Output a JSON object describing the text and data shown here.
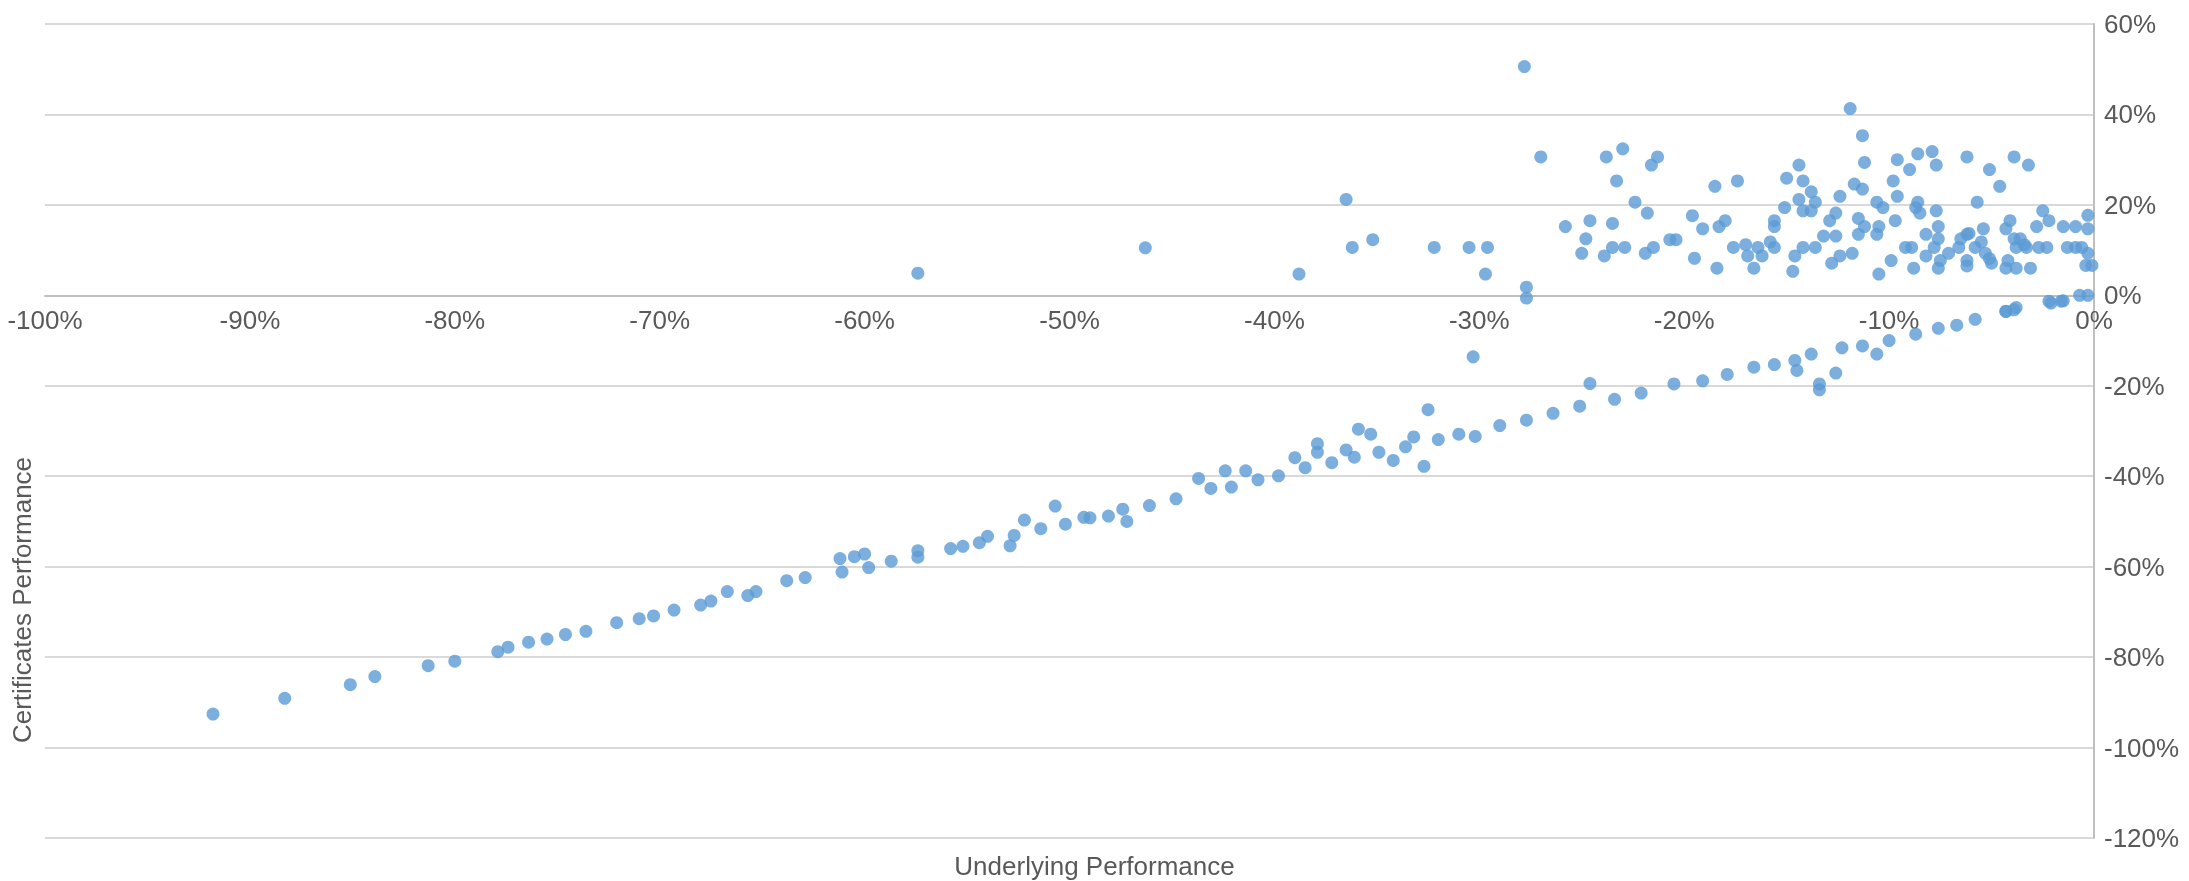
{
  "chart_data": {
    "type": "scatter",
    "xlabel": "Underlying Performance",
    "ylabel": "Certificates Performance",
    "xlim": [
      -100,
      0
    ],
    "ylim": [
      -120,
      60
    ],
    "xticks": [
      {
        "value": -100,
        "label": "-100%"
      },
      {
        "value": -90,
        "label": "-90%"
      },
      {
        "value": -80,
        "label": "-80%"
      },
      {
        "value": -70,
        "label": "-70%"
      },
      {
        "value": -60,
        "label": "-60%"
      },
      {
        "value": -50,
        "label": "-50%"
      },
      {
        "value": -40,
        "label": "-40%"
      },
      {
        "value": -30,
        "label": "-30%"
      },
      {
        "value": -20,
        "label": "-20%"
      },
      {
        "value": -10,
        "label": "-10%"
      },
      {
        "value": 0,
        "label": "0%"
      }
    ],
    "yticks": [
      {
        "value": -120,
        "label": "-120%"
      },
      {
        "value": -100,
        "label": "-100%"
      },
      {
        "value": -80,
        "label": "-80%"
      },
      {
        "value": -60,
        "label": "-60%"
      },
      {
        "value": -40,
        "label": "-40%"
      },
      {
        "value": -20,
        "label": "-20%"
      },
      {
        "value": 0,
        "label": "0%"
      },
      {
        "value": 20,
        "label": "20%"
      },
      {
        "value": 40,
        "label": "40%"
      },
      {
        "value": 60,
        "label": "60%"
      }
    ],
    "grid": "y",
    "marker": "circle",
    "series": [
      {
        "color": "#5b9bd5",
        "x": [
          -91.8,
          -88.3,
          -85.1,
          -83.9,
          -81.3,
          -80.0,
          -77.9,
          -77.4,
          -76.4,
          -75.5,
          -74.6,
          -73.6,
          -72.1,
          -71.0,
          -70.3,
          -69.3,
          -68.0,
          -67.5,
          -66.7,
          -65.7,
          -65.3,
          -63.8,
          -62.9,
          -61.2,
          -61.1,
          -60.5,
          -60.0,
          -59.8,
          -58.7,
          -57.4,
          -57.4,
          -55.8,
          -55.2,
          -54.4,
          -54.0,
          -52.9,
          -52.7,
          -52.2,
          -51.4,
          -50.7,
          -50.2,
          -49.0,
          -48.1,
          -49.3,
          -47.4,
          -47.2,
          -46.1,
          -44.8,
          -43.7,
          -43.1,
          -42.4,
          -42.1,
          -41.4,
          -40.8,
          -39.8,
          -39.0,
          -38.5,
          -37.9,
          -37.9,
          -37.2,
          -36.5,
          -36.1,
          -35.9,
          -35.3,
          -34.9,
          -34.2,
          -33.6,
          -33.2,
          -32.7,
          -32.5,
          -32.0,
          -31.0,
          -30.3,
          -30.2,
          -29.0,
          -27.7,
          -26.4,
          -25.1,
          -24.6,
          -23.4,
          -22.1,
          -20.5,
          -19.1,
          -17.9,
          -16.6,
          -15.6,
          -14.6,
          -14.5,
          -13.8,
          -13.4,
          -13.4,
          -12.6,
          -12.3,
          -11.3,
          -10.6,
          -10.0,
          -8.7,
          -7.6,
          -6.7,
          -5.8,
          -4.3,
          -3.8,
          -2.1,
          -1.5,
          -57.4,
          -46.3,
          -38.8,
          -36.5,
          -36.2,
          -35.2,
          -32.2,
          -30.5,
          -29.7,
          -29.6,
          -27.8,
          -27.7,
          -27.7,
          -27.0,
          -25.8,
          -25.0,
          -24.8,
          -24.6,
          -23.9,
          -23.8,
          -23.5,
          -23.5,
          -23.3,
          -23.0,
          -22.9,
          -22.4,
          -21.9,
          -21.8,
          -21.6,
          -21.5,
          -21.3,
          -20.7,
          -20.4,
          -19.6,
          -19.5,
          -19.1,
          -18.5,
          -18.4,
          -18.3,
          -18.0,
          -17.6,
          -17.4,
          -17.0,
          -16.9,
          -16.6,
          -16.4,
          -16.2,
          -15.8,
          -15.6,
          -15.6,
          -15.6,
          -15.1,
          -15.0,
          -14.7,
          -14.6,
          -14.4,
          -14.4,
          -14.2,
          -14.2,
          -14.2,
          -13.8,
          -13.8,
          -13.6,
          -13.6,
          -13.2,
          -12.9,
          -12.8,
          -12.6,
          -12.4,
          -12.6,
          -12.4,
          -11.9,
          -11.8,
          -11.7,
          -11.5,
          -11.5,
          -11.3,
          -11.3,
          -11.2,
          -11.2,
          -10.6,
          -10.6,
          -10.5,
          -10.5,
          -10.3,
          -9.9,
          -9.8,
          -9.7,
          -9.6,
          -9.6,
          -9.2,
          -9.0,
          -8.9,
          -8.8,
          -8.7,
          -8.6,
          -8.6,
          -8.5,
          -8.2,
          -8.2,
          -7.9,
          -7.8,
          -7.7,
          -7.7,
          -7.6,
          -7.6,
          -7.6,
          -7.5,
          -7.1,
          -6.6,
          -6.5,
          -6.2,
          -6.2,
          -6.2,
          -6.2,
          -6.1,
          -5.8,
          -5.7,
          -5.5,
          -5.4,
          -5.3,
          -5.1,
          -5.1,
          -5.0,
          -4.6,
          -4.3,
          -4.3,
          -4.2,
          -4.1,
          -3.9,
          -3.9,
          -3.8,
          -3.8,
          -3.6,
          -3.4,
          -3.3,
          -3.2,
          -3.1,
          -2.8,
          -2.7,
          -2.5,
          -2.3,
          -2.2,
          -2.2,
          -1.6,
          -1.5,
          -1.3,
          -0.9,
          -0.9,
          -0.7,
          -0.6,
          -0.4,
          -0.3,
          -0.3,
          -0.3,
          -0.3,
          -0.1,
          -4.3,
          -3.9
        ],
        "values": [
          -92.6,
          -89.1,
          -86.1,
          -84.3,
          -81.9,
          -80.9,
          -78.8,
          -77.8,
          -76.7,
          -76.0,
          -75.0,
          -74.3,
          -72.4,
          -71.5,
          -70.9,
          -69.6,
          -68.5,
          -67.6,
          -65.5,
          -66.4,
          -65.5,
          -63.1,
          -62.4,
          -58.2,
          -61.2,
          -57.8,
          -57.2,
          -60.2,
          -58.8,
          -56.5,
          -57.9,
          -56.0,
          -55.5,
          -54.7,
          -53.3,
          -55.4,
          -53.1,
          -49.7,
          -51.6,
          -46.6,
          -50.6,
          -49.2,
          -48.8,
          -49.1,
          -47.3,
          -50.0,
          -46.5,
          -45.0,
          -40.5,
          -42.7,
          -38.8,
          -42.4,
          -38.8,
          -40.8,
          -39.9,
          -35.9,
          -38.1,
          -32.8,
          -34.7,
          -37.0,
          -34.2,
          -35.8,
          -29.6,
          -30.7,
          -34.7,
          -36.5,
          -33.5,
          -31.3,
          -37.8,
          -25.3,
          -31.9,
          -30.7,
          -13.6,
          -31.2,
          -28.8,
          -27.6,
          -26.1,
          -24.5,
          -19.5,
          -23.0,
          -21.6,
          -19.6,
          -18.9,
          -17.5,
          -15.9,
          -15.3,
          -14.4,
          -16.6,
          -13.0,
          -19.6,
          -20.9,
          -17.2,
          -11.6,
          -11.2,
          -13.0,
          -10.0,
          -8.6,
          -7.3,
          -6.6,
          -5.3,
          -3.5,
          -2.7,
          -1.7,
          -1.2,
          4.9,
          10.5,
          4.7,
          21.2,
          10.6,
          12.3,
          10.6,
          10.6,
          4.7,
          10.6,
          50.6,
          1.8,
          -0.6,
          30.6,
          15.2,
          9.3,
          12.5,
          16.5,
          8.7,
          30.6,
          15.9,
          10.6,
          25.3,
          32.4,
          10.6,
          20.6,
          9.3,
          18.2,
          28.8,
          10.6,
          30.6,
          12.3,
          12.3,
          17.6,
          8.2,
          14.7,
          24.1,
          6.0,
          15.2,
          16.5,
          10.6,
          25.3,
          11.2,
          8.7,
          6.0,
          10.6,
          8.7,
          11.8,
          15.2,
          16.5,
          10.6,
          19.4,
          25.9,
          5.3,
          8.7,
          28.8,
          21.2,
          25.3,
          18.7,
          10.6,
          22.9,
          18.7,
          20.6,
          10.6,
          13.1,
          16.5,
          7.1,
          13.1,
          21.9,
          18.2,
          8.7,
          41.3,
          9.3,
          24.6,
          13.5,
          17.0,
          35.3,
          23.5,
          29.4,
          15.2,
          20.6,
          13.5,
          15.2,
          4.7,
          19.4,
          7.7,
          25.3,
          16.5,
          30.0,
          21.9,
          10.6,
          27.8,
          10.6,
          6.0,
          19.4,
          31.3,
          20.6,
          18.2,
          13.5,
          8.7,
          31.8,
          10.6,
          28.8,
          18.7,
          12.5,
          15.2,
          6.0,
          7.7,
          9.3,
          10.6,
          12.5,
          13.5,
          30.6,
          7.7,
          6.5,
          13.7,
          10.6,
          20.6,
          11.8,
          14.7,
          9.3,
          8.1,
          27.8,
          7.1,
          24.1,
          14.7,
          6.0,
          7.7,
          16.5,
          30.6,
          12.5,
          10.6,
          6.0,
          12.5,
          11.2,
          10.6,
          28.8,
          6.0,
          15.2,
          10.6,
          18.7,
          10.6,
          16.5,
          -1.3,
          -1.3,
          15.2,
          10.6,
          10.6,
          15.2,
          0.0,
          10.6,
          6.6,
          0.0,
          17.7,
          14.7,
          9.3,
          6.6,
          -3.6,
          -3.2
        ]
      }
    ]
  }
}
